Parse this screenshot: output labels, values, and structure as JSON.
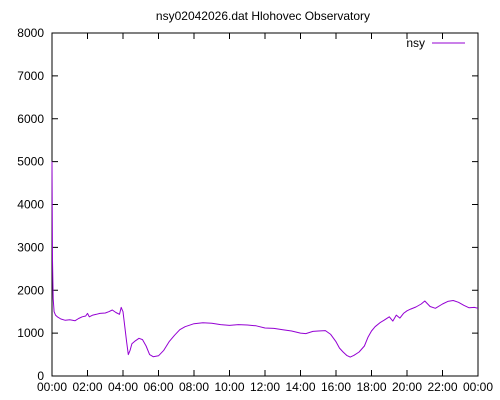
{
  "chart_data": {
    "type": "line",
    "title": "nsy02042026.dat Hlohovec Observatory",
    "xlabel": "",
    "ylabel": "",
    "x_unit": "hours",
    "xlim": [
      0,
      24
    ],
    "ylim": [
      0,
      8000
    ],
    "y_ticks": [
      0,
      1000,
      2000,
      3000,
      4000,
      5000,
      6000,
      7000,
      8000
    ],
    "y_tick_labels": [
      "0",
      "1000",
      "2000",
      "3000",
      "4000",
      "5000",
      "6000",
      "7000",
      "8000"
    ],
    "x_ticks": [
      0,
      2,
      4,
      6,
      8,
      10,
      12,
      14,
      16,
      18,
      20,
      22,
      24
    ],
    "x_tick_labels": [
      "00:00",
      "02:00",
      "04:00",
      "06:00",
      "08:00",
      "10:00",
      "12:00",
      "14:00",
      "16:00",
      "18:00",
      "20:00",
      "22:00",
      "00:00"
    ],
    "grid": false,
    "legend_position": "top-right",
    "series": [
      {
        "name": "nsy",
        "color": "#9400d3",
        "points": [
          [
            0.0,
            5000
          ],
          [
            0.03,
            2700
          ],
          [
            0.07,
            1800
          ],
          [
            0.12,
            1500
          ],
          [
            0.2,
            1420
          ],
          [
            0.3,
            1380
          ],
          [
            0.5,
            1330
          ],
          [
            0.75,
            1300
          ],
          [
            1.0,
            1310
          ],
          [
            1.3,
            1290
          ],
          [
            1.5,
            1340
          ],
          [
            1.7,
            1380
          ],
          [
            1.9,
            1400
          ],
          [
            2.0,
            1460
          ],
          [
            2.1,
            1380
          ],
          [
            2.3,
            1420
          ],
          [
            2.5,
            1440
          ],
          [
            2.7,
            1460
          ],
          [
            3.0,
            1470
          ],
          [
            3.2,
            1500
          ],
          [
            3.4,
            1540
          ],
          [
            3.6,
            1480
          ],
          [
            3.8,
            1440
          ],
          [
            3.9,
            1600
          ],
          [
            4.0,
            1500
          ],
          [
            4.1,
            1150
          ],
          [
            4.2,
            800
          ],
          [
            4.3,
            500
          ],
          [
            4.4,
            600
          ],
          [
            4.5,
            750
          ],
          [
            4.7,
            820
          ],
          [
            4.9,
            880
          ],
          [
            5.1,
            850
          ],
          [
            5.3,
            700
          ],
          [
            5.5,
            500
          ],
          [
            5.7,
            450
          ],
          [
            6.0,
            470
          ],
          [
            6.3,
            600
          ],
          [
            6.6,
            800
          ],
          [
            6.9,
            950
          ],
          [
            7.2,
            1080
          ],
          [
            7.5,
            1150
          ],
          [
            8.0,
            1220
          ],
          [
            8.5,
            1240
          ],
          [
            9.0,
            1230
          ],
          [
            9.5,
            1200
          ],
          [
            10.0,
            1180
          ],
          [
            10.5,
            1200
          ],
          [
            11.0,
            1190
          ],
          [
            11.5,
            1170
          ],
          [
            12.0,
            1120
          ],
          [
            12.5,
            1110
          ],
          [
            13.0,
            1080
          ],
          [
            13.5,
            1050
          ],
          [
            14.0,
            1000
          ],
          [
            14.3,
            990
          ],
          [
            14.7,
            1040
          ],
          [
            15.0,
            1050
          ],
          [
            15.4,
            1060
          ],
          [
            15.7,
            970
          ],
          [
            16.0,
            800
          ],
          [
            16.2,
            650
          ],
          [
            16.4,
            560
          ],
          [
            16.6,
            480
          ],
          [
            16.8,
            440
          ],
          [
            17.0,
            480
          ],
          [
            17.3,
            560
          ],
          [
            17.6,
            700
          ],
          [
            17.8,
            900
          ],
          [
            18.0,
            1050
          ],
          [
            18.2,
            1150
          ],
          [
            18.5,
            1250
          ],
          [
            18.7,
            1300
          ],
          [
            19.0,
            1380
          ],
          [
            19.2,
            1280
          ],
          [
            19.4,
            1420
          ],
          [
            19.6,
            1350
          ],
          [
            19.8,
            1460
          ],
          [
            20.0,
            1520
          ],
          [
            20.2,
            1560
          ],
          [
            20.5,
            1610
          ],
          [
            20.8,
            1680
          ],
          [
            21.0,
            1750
          ],
          [
            21.3,
            1620
          ],
          [
            21.6,
            1580
          ],
          [
            22.0,
            1680
          ],
          [
            22.3,
            1740
          ],
          [
            22.6,
            1760
          ],
          [
            22.9,
            1720
          ],
          [
            23.2,
            1650
          ],
          [
            23.5,
            1590
          ],
          [
            23.8,
            1600
          ],
          [
            24.0,
            1580
          ]
        ]
      }
    ]
  }
}
